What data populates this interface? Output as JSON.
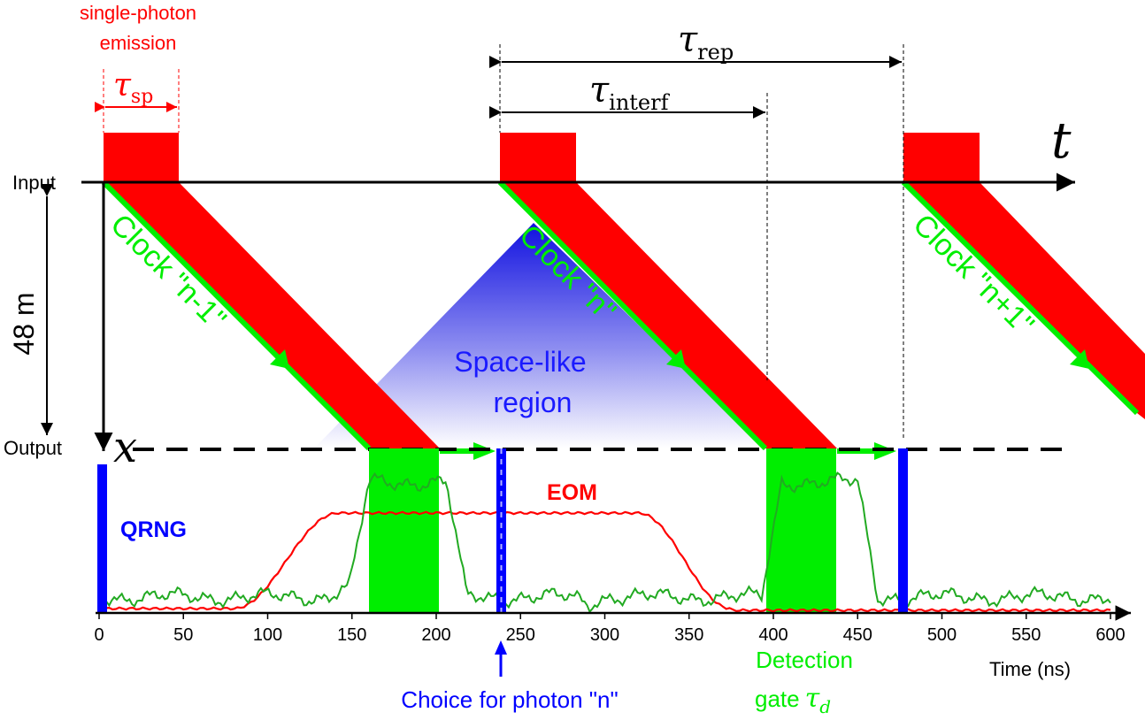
{
  "colors": {
    "red": "#ff0000",
    "green": "#00ee00",
    "trace_green": "#22aa22",
    "blue": "#0000ff",
    "black": "#000000"
  },
  "labels": {
    "single_photon_line1": "single-photon",
    "single_photon_line2": "emission",
    "tau": "τ",
    "sub_sp": "sp",
    "sub_rep": "rep",
    "sub_interf": "interf",
    "t_axis": "t",
    "x_axis": "x",
    "input": "Input",
    "output": "Output",
    "distance": "48 m",
    "clock_prev": "Clock \"n-1\"",
    "clock_n": "Clock \"n\"",
    "clock_next": "Clock \"n+1\"",
    "spacelike_line1": "Space-like",
    "spacelike_line2": "region",
    "eom": "EOM",
    "qrng": "QRNG",
    "choice": "Choice for photon \"n\"",
    "detection_line1": "Detection",
    "detection_line2": "gate",
    "tau_d_sub": "d",
    "time_axis": "Time (ns)"
  },
  "time_ticks": [
    0,
    50,
    100,
    150,
    200,
    250,
    300,
    350,
    400,
    450,
    500,
    550,
    600
  ]
}
